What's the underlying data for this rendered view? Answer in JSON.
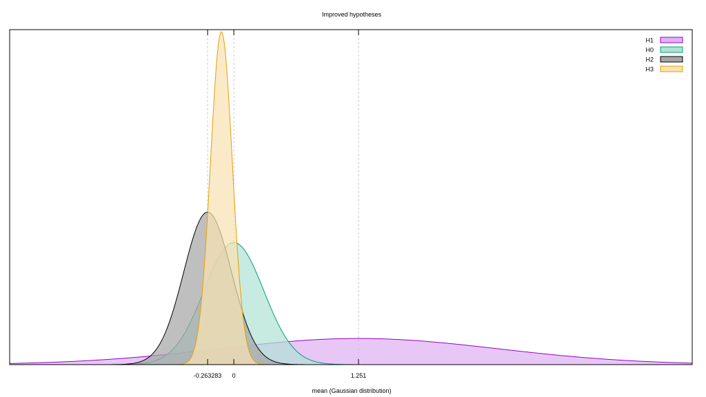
{
  "chart_data": {
    "type": "area",
    "title": "Improved hypotheses",
    "xlabel": "mean (Gaussian distribution)",
    "ylabel": "",
    "xlim": [
      -2.25,
      4.6
    ],
    "ylim": [
      0,
      3.65
    ],
    "x_ticks": [
      {
        "value": -0.263283,
        "label": "-0.263283"
      },
      {
        "value": 0,
        "label": "0"
      },
      {
        "value": 1.251,
        "label": "1.251"
      }
    ],
    "grid": "vertical dashed at tick positions",
    "legend_position": "top-right",
    "series": [
      {
        "name": "H1",
        "mean": 1.251,
        "sd": 1.4,
        "color": "#9400d3",
        "fill": "#dfb2f4"
      },
      {
        "name": "H0",
        "mean": 0.0,
        "sd": 0.3,
        "color": "#009e73",
        "fill": "#b2e2d5"
      },
      {
        "name": "H2",
        "mean": -0.263283,
        "sd": 0.24,
        "color": "#000000",
        "fill": "#a6a6a6"
      },
      {
        "name": "H3",
        "mean": -0.125,
        "sd": 0.11,
        "color": "#e69f00",
        "fill": "#f8e2b2"
      }
    ]
  }
}
